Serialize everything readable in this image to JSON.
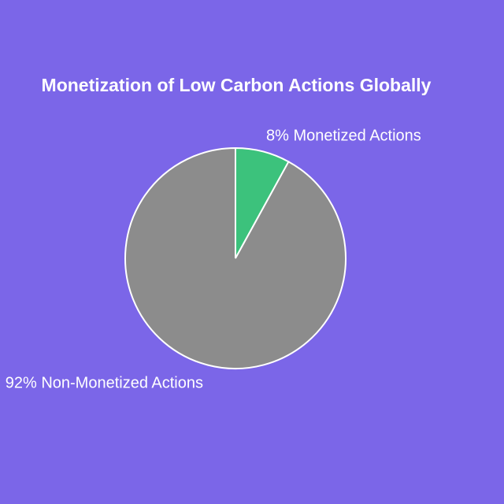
{
  "chart_data": {
    "type": "pie",
    "title": "Monetization of Low Carbon Actions Globally",
    "values": [
      8,
      92
    ],
    "value_labels": [
      "8% Monetized Actions",
      "92% Non-Monetized Actions"
    ],
    "colors": [
      "#3cc27c",
      "#8c8c8c"
    ]
  }
}
